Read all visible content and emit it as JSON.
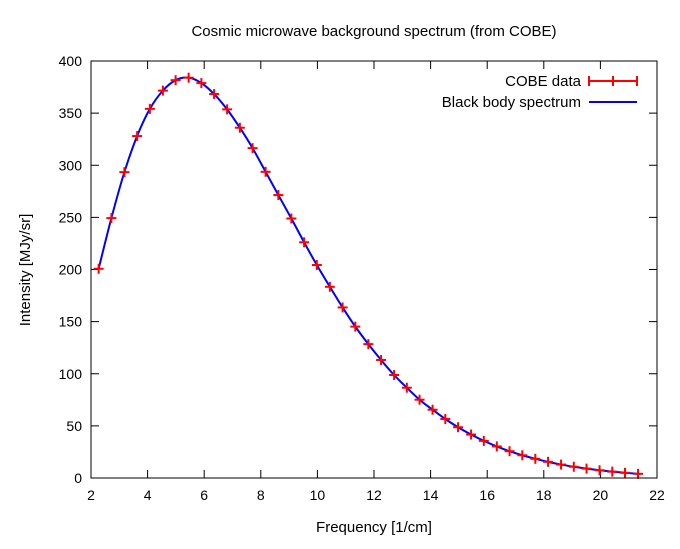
{
  "chart_data": {
    "type": "line",
    "title": "Cosmic microwave background spectrum (from COBE)",
    "xlabel": "Frequency [1/cm]",
    "ylabel": "Intensity [MJy/sr]",
    "xlim": [
      2,
      22
    ],
    "ylim": [
      0,
      400
    ],
    "xticks": [
      2,
      4,
      6,
      8,
      10,
      12,
      14,
      16,
      18,
      20,
      22
    ],
    "yticks": [
      0,
      50,
      100,
      150,
      200,
      250,
      300,
      350,
      400
    ],
    "grid": false,
    "legend_position": "top-right",
    "series": [
      {
        "name": "COBE data",
        "style": "points-with-error-bars",
        "color": "#ff0000",
        "x": [
          2.27,
          2.72,
          3.18,
          3.63,
          4.08,
          4.54,
          4.99,
          5.45,
          5.9,
          6.35,
          6.81,
          7.26,
          7.71,
          8.17,
          8.62,
          9.08,
          9.53,
          9.98,
          10.44,
          10.89,
          11.34,
          11.8,
          12.25,
          12.71,
          13.16,
          13.61,
          14.07,
          14.52,
          14.97,
          15.43,
          15.88,
          16.34,
          16.79,
          17.24,
          17.7,
          18.15,
          18.61,
          19.06,
          19.51,
          19.97,
          20.42,
          20.87,
          21.33
        ],
        "y": [
          200.7,
          249.3,
          293.4,
          328.0,
          354.1,
          371.6,
          381.6,
          384.0,
          378.8,
          368.3,
          353.6,
          336.0,
          316.4,
          293.7,
          271.4,
          248.9,
          226.1,
          204.3,
          183.4,
          163.6,
          145.2,
          128.4,
          113.2,
          98.8,
          86.6,
          75.1,
          65.5,
          56.6,
          48.7,
          41.7,
          35.6,
          30.3,
          25.7,
          21.8,
          18.4,
          15.5,
          12.9,
          10.8,
          9.0,
          7.4,
          6.1,
          5.0,
          4.0
        ]
      },
      {
        "name": "Black body spectrum",
        "style": "line",
        "color": "#0000ff",
        "x": [
          2.27,
          2.72,
          3.18,
          3.63,
          4.08,
          4.54,
          4.99,
          5.45,
          5.9,
          6.35,
          6.81,
          7.26,
          7.71,
          8.17,
          8.62,
          9.08,
          9.53,
          9.98,
          10.44,
          10.89,
          11.34,
          11.8,
          12.25,
          12.71,
          13.16,
          13.61,
          14.07,
          14.52,
          14.97,
          15.43,
          15.88,
          16.34,
          16.79,
          17.24,
          17.7,
          18.15,
          18.61,
          19.06,
          19.51,
          19.97,
          20.42,
          20.87,
          21.33
        ],
        "y": [
          200.7,
          249.3,
          293.4,
          328.0,
          354.1,
          371.6,
          381.6,
          384.0,
          378.8,
          368.3,
          353.6,
          336.0,
          316.4,
          293.7,
          271.4,
          248.9,
          226.1,
          204.3,
          183.4,
          163.6,
          145.2,
          128.4,
          113.2,
          98.8,
          86.6,
          75.1,
          65.5,
          56.6,
          48.7,
          41.7,
          35.6,
          30.3,
          25.7,
          21.8,
          18.4,
          15.5,
          12.9,
          10.8,
          9.0,
          7.4,
          6.1,
          5.0,
          4.0
        ]
      }
    ]
  }
}
